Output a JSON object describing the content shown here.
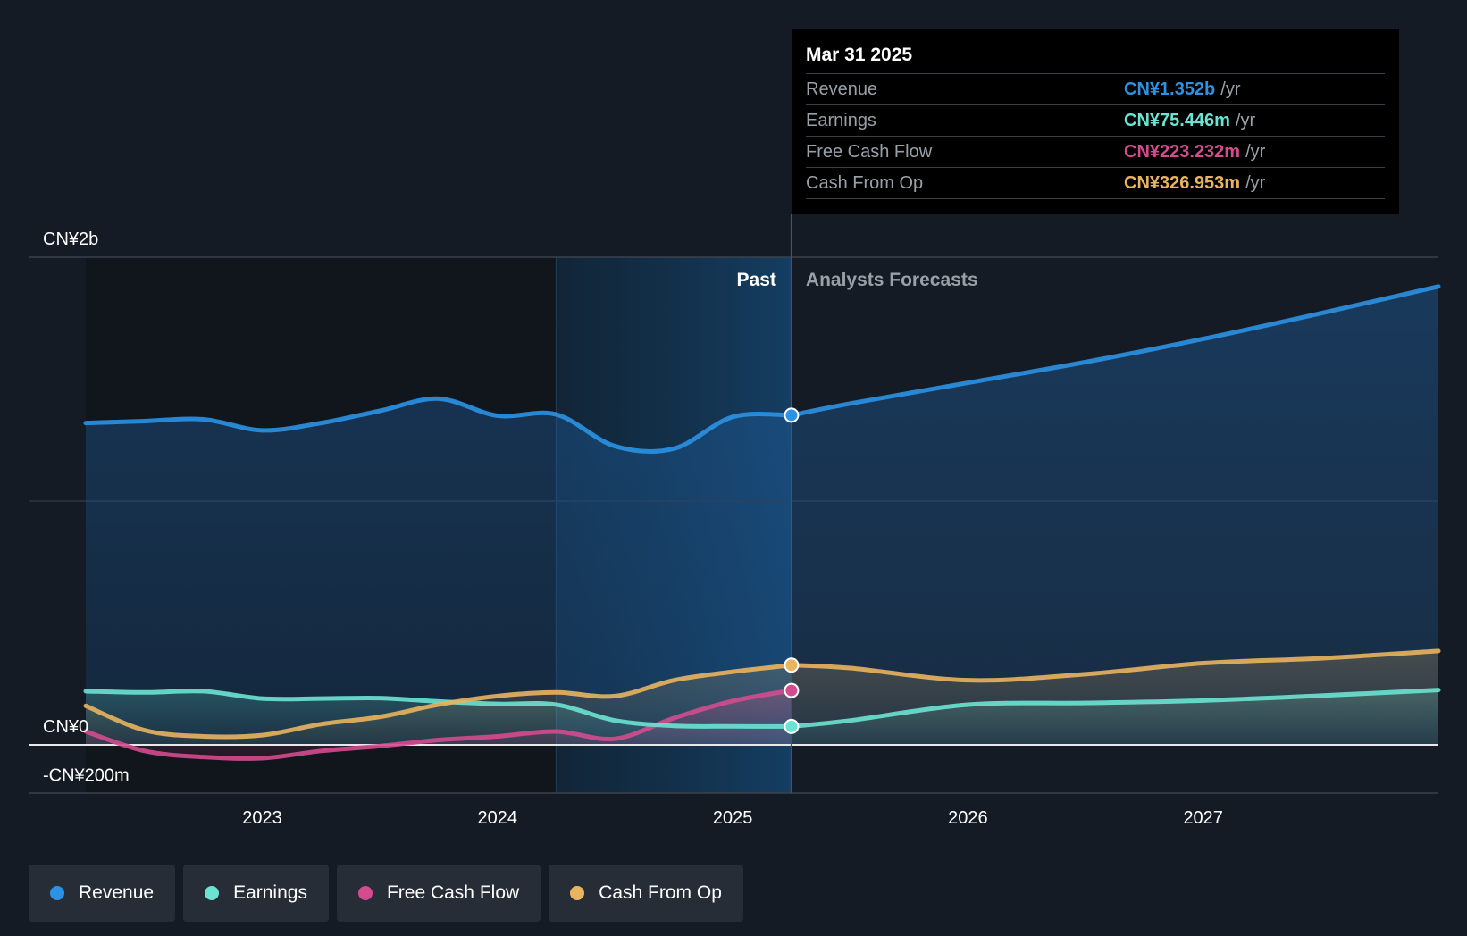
{
  "chart_data": {
    "type": "area",
    "y_labels": [
      {
        "value": 2000,
        "label": "CN¥2b"
      },
      {
        "value": 0,
        "label": "CN¥0"
      },
      {
        "value": -200,
        "label": "-CN¥200m"
      }
    ],
    "ylim": [
      -200,
      2000
    ],
    "y_unit": "CN¥ millions",
    "xlim": [
      2022.25,
      2028.0
    ],
    "x_ticks": [
      {
        "value": 2023,
        "label": "2023"
      },
      {
        "value": 2024,
        "label": "2024"
      },
      {
        "value": 2025,
        "label": "2025"
      },
      {
        "value": 2026,
        "label": "2026"
      },
      {
        "value": 2027,
        "label": "2027"
      }
    ],
    "past_label": "Past",
    "forecast_label": "Analysts Forecasts",
    "highlight_start": 2024.25,
    "divider_x": 2025.25,
    "series": [
      {
        "name": "Revenue",
        "color": "#2b92e4",
        "past": [
          [
            2022.25,
            1320
          ],
          [
            2022.5,
            1328
          ],
          [
            2022.75,
            1335
          ],
          [
            2023.0,
            1290
          ],
          [
            2023.25,
            1320
          ],
          [
            2023.5,
            1370
          ],
          [
            2023.75,
            1420
          ],
          [
            2024.0,
            1350
          ],
          [
            2024.25,
            1355
          ],
          [
            2024.5,
            1225
          ],
          [
            2024.75,
            1215
          ],
          [
            2025.0,
            1345
          ],
          [
            2025.25,
            1352
          ]
        ],
        "forecast": [
          [
            2025.25,
            1352
          ],
          [
            2025.5,
            1400
          ],
          [
            2026.0,
            1485
          ],
          [
            2026.5,
            1570
          ],
          [
            2027.0,
            1665
          ],
          [
            2027.5,
            1770
          ],
          [
            2028.0,
            1880
          ]
        ]
      },
      {
        "name": "Earnings",
        "color": "#6be3d2",
        "past": [
          [
            2022.25,
            220
          ],
          [
            2022.5,
            215
          ],
          [
            2022.75,
            220
          ],
          [
            2023.0,
            190
          ],
          [
            2023.25,
            190
          ],
          [
            2023.5,
            192
          ],
          [
            2023.75,
            178
          ],
          [
            2024.0,
            168
          ],
          [
            2024.25,
            165
          ],
          [
            2024.5,
            100
          ],
          [
            2024.75,
            78
          ],
          [
            2025.0,
            76
          ],
          [
            2025.25,
            75.4
          ]
        ],
        "forecast": [
          [
            2025.25,
            75.4
          ],
          [
            2025.5,
            100
          ],
          [
            2026.0,
            165
          ],
          [
            2026.5,
            172
          ],
          [
            2027.0,
            182
          ],
          [
            2027.5,
            202
          ],
          [
            2028.0,
            225
          ]
        ]
      },
      {
        "name": "Free Cash Flow",
        "color": "#d44b8f",
        "past": [
          [
            2022.25,
            55
          ],
          [
            2022.5,
            -25
          ],
          [
            2022.75,
            -50
          ],
          [
            2023.0,
            -55
          ],
          [
            2023.25,
            -25
          ],
          [
            2023.5,
            -5
          ],
          [
            2023.75,
            20
          ],
          [
            2024.0,
            35
          ],
          [
            2024.25,
            55
          ],
          [
            2024.5,
            25
          ],
          [
            2024.75,
            110
          ],
          [
            2025.0,
            180
          ],
          [
            2025.25,
            223.2
          ]
        ]
      },
      {
        "name": "Cash From Op",
        "color": "#e9b45f",
        "past": [
          [
            2022.25,
            160
          ],
          [
            2022.5,
            60
          ],
          [
            2022.75,
            35
          ],
          [
            2023.0,
            40
          ],
          [
            2023.25,
            85
          ],
          [
            2023.5,
            115
          ],
          [
            2023.75,
            165
          ],
          [
            2024.0,
            200
          ],
          [
            2024.25,
            215
          ],
          [
            2024.5,
            200
          ],
          [
            2024.75,
            265
          ],
          [
            2025.0,
            300
          ],
          [
            2025.25,
            327
          ]
        ],
        "forecast": [
          [
            2025.25,
            327
          ],
          [
            2025.5,
            315
          ],
          [
            2026.0,
            265
          ],
          [
            2026.5,
            290
          ],
          [
            2027.0,
            335
          ],
          [
            2027.5,
            355
          ],
          [
            2028.0,
            385
          ]
        ]
      }
    ]
  },
  "tooltip": {
    "date": "Mar 31 2025",
    "rows": [
      {
        "label": "Revenue",
        "value": "CN¥1.352b",
        "unit": "/yr",
        "color": "#2b92e4"
      },
      {
        "label": "Earnings",
        "value": "CN¥75.446m",
        "unit": "/yr",
        "color": "#6be3d2"
      },
      {
        "label": "Free Cash Flow",
        "value": "CN¥223.232m",
        "unit": "/yr",
        "color": "#d44b8f"
      },
      {
        "label": "Cash From Op",
        "value": "CN¥326.953m",
        "unit": "/yr",
        "color": "#e9b45f"
      }
    ]
  },
  "legend": [
    {
      "label": "Revenue",
      "color": "#2b92e4"
    },
    {
      "label": "Earnings",
      "color": "#6be3d2"
    },
    {
      "label": "Free Cash Flow",
      "color": "#d44b8f"
    },
    {
      "label": "Cash From Op",
      "color": "#e9b45f"
    }
  ]
}
